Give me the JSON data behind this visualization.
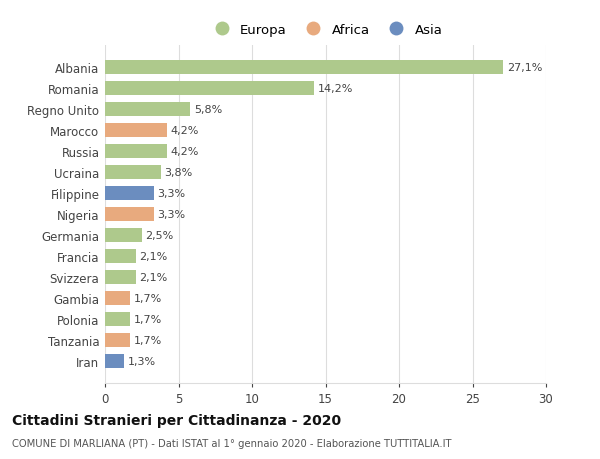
{
  "countries": [
    "Albania",
    "Romania",
    "Regno Unito",
    "Marocco",
    "Russia",
    "Ucraina",
    "Filippine",
    "Nigeria",
    "Germania",
    "Francia",
    "Svizzera",
    "Gambia",
    "Polonia",
    "Tanzania",
    "Iran"
  ],
  "values": [
    27.1,
    14.2,
    5.8,
    4.2,
    4.2,
    3.8,
    3.3,
    3.3,
    2.5,
    2.1,
    2.1,
    1.7,
    1.7,
    1.7,
    1.3
  ],
  "labels": [
    "27,1%",
    "14,2%",
    "5,8%",
    "4,2%",
    "4,2%",
    "3,8%",
    "3,3%",
    "3,3%",
    "2,5%",
    "2,1%",
    "2,1%",
    "1,7%",
    "1,7%",
    "1,7%",
    "1,3%"
  ],
  "continents": [
    "Europa",
    "Europa",
    "Europa",
    "Africa",
    "Europa",
    "Europa",
    "Asia",
    "Africa",
    "Europa",
    "Europa",
    "Europa",
    "Africa",
    "Europa",
    "Africa",
    "Asia"
  ],
  "continent_colors": {
    "Europa": "#aec98c",
    "Africa": "#e8aa7e",
    "Asia": "#6b8dbf"
  },
  "legend_labels": [
    "Europa",
    "Africa",
    "Asia"
  ],
  "legend_colors": [
    "#aec98c",
    "#e8aa7e",
    "#6b8dbf"
  ],
  "title": "Cittadini Stranieri per Cittadinanza - 2020",
  "subtitle": "COMUNE DI MARLIANA (PT) - Dati ISTAT al 1° gennaio 2020 - Elaborazione TUTTITALIA.IT",
  "xlim": [
    0,
    30
  ],
  "xticks": [
    0,
    5,
    10,
    15,
    20,
    25,
    30
  ],
  "background_color": "#ffffff",
  "grid_color": "#dddddd"
}
